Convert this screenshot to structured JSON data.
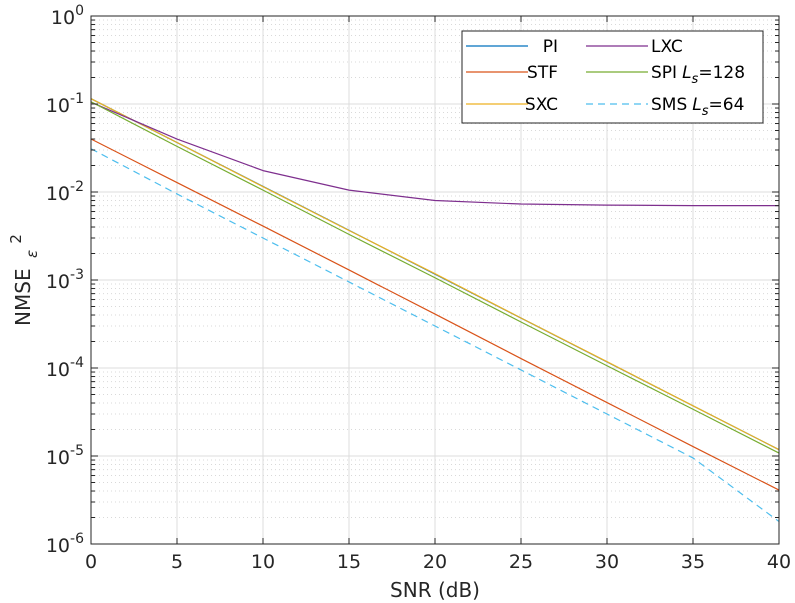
{
  "chart_data": {
    "type": "line",
    "xlabel": "SNR (dB)",
    "ylabel": "NMSE",
    "ylabel_symbol": "ε",
    "ylabel_sup": "2",
    "xlim": [
      0,
      40
    ],
    "ylim": [
      1e-06,
      1
    ],
    "yscale": "log",
    "grid": true,
    "minor_grid": true,
    "legend_position": "top-right",
    "x_ticks": [
      0,
      5,
      10,
      15,
      20,
      25,
      30,
      35,
      40
    ],
    "x_tick_labels": [
      "0",
      "5",
      "10",
      "15",
      "20",
      "25",
      "30",
      "35",
      "40"
    ],
    "y_ticks": [
      {
        "value": 1e-06,
        "base": "10",
        "exp": "-6"
      },
      {
        "value": 1e-05,
        "base": "10",
        "exp": "-5"
      },
      {
        "value": 0.0001,
        "base": "10",
        "exp": "-4"
      },
      {
        "value": 0.001,
        "base": "10",
        "exp": "-3"
      },
      {
        "value": 0.01,
        "base": "10",
        "exp": "-2"
      },
      {
        "value": 0.1,
        "base": "10",
        "exp": "-1"
      },
      {
        "value": 1,
        "base": "10",
        "exp": "0"
      }
    ],
    "series": [
      {
        "name": "PI",
        "color": "#0072BD",
        "dash": "solid",
        "x": [
          0,
          40
        ],
        "values": [
          0.115,
          1.18e-05
        ]
      },
      {
        "name": "STF",
        "color": "#D95319",
        "dash": "solid",
        "x": [
          0,
          5,
          10,
          15,
          20,
          25,
          30,
          35,
          40
        ],
        "values": [
          0.04,
          0.0128,
          0.0041,
          0.0013,
          0.00041,
          0.000128,
          4.05e-05,
          1.28e-05,
          4.1e-06
        ]
      },
      {
        "name": "SXC",
        "color": "#EDB120",
        "dash": "solid",
        "x": [
          0,
          5,
          10,
          15,
          20,
          25,
          30,
          35,
          40
        ],
        "values": [
          0.115,
          0.0365,
          0.0115,
          0.00365,
          0.00118,
          0.00037,
          0.000118,
          3.72e-05,
          1.18e-05
        ]
      },
      {
        "name": "LXC",
        "color": "#7E2F8E",
        "dash": "solid",
        "x": [
          0,
          5,
          10,
          15,
          20,
          25,
          30,
          35,
          40
        ],
        "values": [
          0.105,
          0.04,
          0.0175,
          0.0105,
          0.008,
          0.0073,
          0.0071,
          0.007,
          0.007
        ]
      },
      {
        "name": "SPI",
        "name_sub": "s",
        "name_suffix": "=128",
        "color": "#77AC30",
        "dash": "solid",
        "x": [
          0,
          5,
          10,
          15,
          20,
          25,
          30,
          35,
          40
        ],
        "values": [
          0.106,
          0.033,
          0.0105,
          0.0033,
          0.00106,
          0.000333,
          0.000106,
          3.4e-05,
          1.08e-05
        ]
      },
      {
        "name": "SMS",
        "name_sub": "s",
        "name_suffix": "=64",
        "color": "#4DBEEE",
        "dash": "dashed",
        "x": [
          0,
          5,
          10,
          15,
          20,
          25,
          30,
          35,
          40
        ],
        "values": [
          0.031,
          0.0095,
          0.003,
          0.00095,
          0.0003,
          9.5e-05,
          3e-05,
          9.5e-06,
          1.8e-06
        ]
      }
    ]
  }
}
